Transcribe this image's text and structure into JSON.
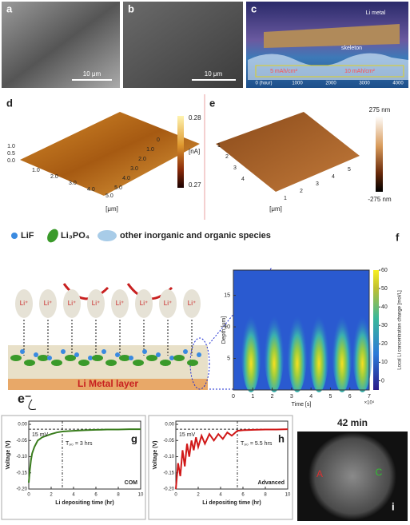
{
  "panels": {
    "a": {
      "label": "a",
      "scale_bar": "10 μm"
    },
    "b": {
      "label": "b",
      "scale_bar": "10 μm"
    },
    "c": {
      "label": "c",
      "texts": [
        "Li metal",
        "skeleton",
        "5 mAh/cm²",
        "10 mAh/cm²"
      ],
      "axis": [
        "0 (hour)",
        "1000",
        "2000",
        "3000",
        "4000"
      ]
    },
    "d": {
      "label": "d",
      "colorbar": [
        "0.28",
        "[nA]",
        "0.27"
      ],
      "left_ticks": [
        "1.0",
        "0.5",
        "0.0"
      ],
      "front_ticks": [
        "1.0",
        "2.0",
        "3.0",
        "4.0",
        "5.0"
      ],
      "right_ticks": [
        "0",
        "1.0",
        "2.0",
        "3.0",
        "4.0",
        "5.0"
      ],
      "unit": "[μm]"
    },
    "e": {
      "label": "e",
      "colorbar": [
        "275 nm",
        "-275 nm"
      ],
      "left_ticks": [
        "1",
        "2",
        "3",
        "4"
      ],
      "right_ticks": [
        "1",
        "2",
        "3",
        "4",
        "5"
      ],
      "unit": "[μm]"
    },
    "schematic": {
      "legend": [
        "LiF",
        "Li₃PO₄",
        "other inorganic and organic species"
      ],
      "li_ion": "Li⁺",
      "layer": "Li Metal layer",
      "electron": "e⁻"
    },
    "f": {
      "label": "f",
      "ylabel": "Depth [μm]",
      "xlabel": "Time [s]",
      "xscale": "×10⁴",
      "cbar_label": "Local Li concentration change [mol/L]",
      "xlim": [
        0,
        7
      ],
      "xticks": [
        0,
        1,
        2,
        3,
        4,
        5,
        6,
        7
      ],
      "ylim": [
        0,
        19
      ],
      "yticks": [
        5,
        10,
        15
      ],
      "clim": [
        -5,
        60
      ],
      "cticks": [
        0,
        10,
        20,
        30,
        40,
        50,
        60
      ]
    },
    "i": {
      "label": "i",
      "title": "42 min",
      "marks": [
        "A",
        "C"
      ]
    }
  },
  "chart_data": [
    {
      "type": "line",
      "label": "g",
      "ylabel": "Voltage (V)",
      "xlabel": "Li depositing time (hr)",
      "legend": "COM",
      "annotations": [
        "15 mV",
        "T₉₀ = 3 hrs"
      ],
      "hline_y": -0.015,
      "vline_x": 3,
      "xlim": [
        0,
        10
      ],
      "xticks": [
        0,
        2,
        4,
        6,
        8,
        10
      ],
      "ylim": [
        -0.2,
        0.01
      ],
      "yticks": [
        {
          "value": -0.2,
          "label": "-0.20"
        },
        {
          "value": -0.15,
          "label": "-0.15"
        },
        {
          "value": -0.1,
          "label": "-0.10"
        },
        {
          "value": -0.05,
          "label": "-0.05"
        },
        {
          "value": 0,
          "label": "0.00"
        }
      ],
      "series": [
        {
          "name": "COM",
          "color": "#3a7d1e",
          "x": [
            0,
            0.1,
            0.2,
            0.3,
            0.5,
            0.8,
            1.2,
            1.6,
            2,
            2.5,
            3,
            4,
            5,
            6,
            7,
            8,
            9,
            10
          ],
          "values": [
            -0.18,
            -0.14,
            -0.11,
            -0.09,
            -0.07,
            -0.05,
            -0.04,
            -0.035,
            -0.03,
            -0.025,
            -0.022,
            -0.02,
            -0.018,
            -0.017,
            -0.016,
            -0.016,
            -0.015,
            -0.015
          ]
        }
      ]
    },
    {
      "type": "line",
      "label": "h",
      "ylabel": "Voltage (V)",
      "xlabel": "Li depositing time (hr)",
      "legend": "Advanced",
      "annotations": [
        "15 mV",
        "T₉₀ = 5.5 hrs"
      ],
      "hline_y": -0.015,
      "vline_x": 5.5,
      "xlim": [
        0,
        10
      ],
      "xticks": [
        0,
        2,
        4,
        6,
        8,
        10
      ],
      "ylim": [
        -0.2,
        0.01
      ],
      "yticks": [
        {
          "value": -0.2,
          "label": "-0.20"
        },
        {
          "value": -0.15,
          "label": "-0.15"
        },
        {
          "value": -0.1,
          "label": "-0.10"
        },
        {
          "value": -0.05,
          "label": "-0.05"
        },
        {
          "value": 0,
          "label": "0.00"
        }
      ],
      "series": [
        {
          "name": "Advanced",
          "color": "#d01818",
          "x": [
            0,
            0.2,
            0.4,
            0.6,
            0.8,
            1,
            1.2,
            1.4,
            1.6,
            1.8,
            2,
            2.3,
            2.6,
            3,
            3.4,
            3.8,
            4.2,
            4.6,
            5,
            5.5,
            6,
            7,
            8,
            9,
            10
          ],
          "values": [
            -0.2,
            -0.12,
            -0.16,
            -0.08,
            -0.13,
            -0.06,
            -0.1,
            -0.05,
            -0.08,
            -0.04,
            -0.07,
            -0.035,
            -0.06,
            -0.03,
            -0.05,
            -0.03,
            -0.045,
            -0.025,
            -0.035,
            -0.02,
            -0.018,
            -0.017,
            -0.016,
            -0.016,
            -0.015
          ]
        }
      ]
    }
  ]
}
